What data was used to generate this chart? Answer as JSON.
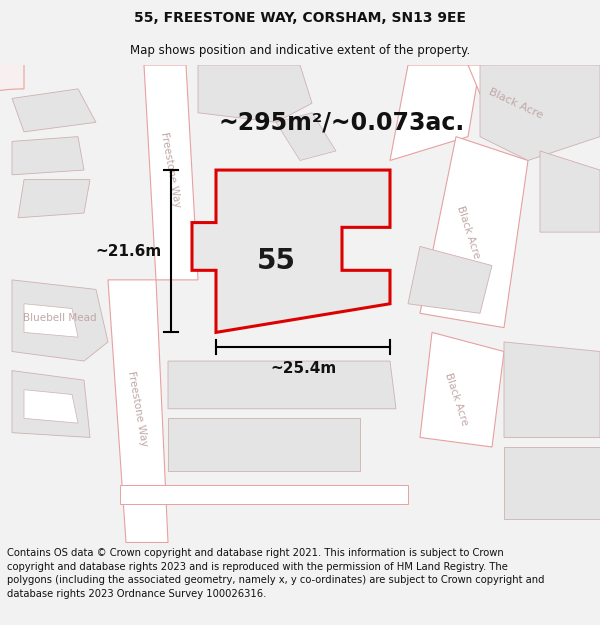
{
  "title": "55, FREESTONE WAY, CORSHAM, SN13 9EE",
  "subtitle": "Map shows position and indicative extent of the property.",
  "area_text": "~295m²/~0.073ac.",
  "label_55": "55",
  "dim_height": "~21.6m",
  "dim_width": "~25.4m",
  "footer": "Contains OS data © Crown copyright and database right 2021. This information is subject to Crown copyright and database rights 2023 and is reproduced with the permission of HM Land Registry. The polygons (including the associated geometry, namely x, y co-ordinates) are subject to Crown copyright and database rights 2023 Ordnance Survey 100026316.",
  "bg_color": "#f2f2f2",
  "map_bg": "#ffffff",
  "property_fill": "#e8e8e8",
  "property_edge": "#dd0000",
  "road_outline": "#e8a0a0",
  "building_fill": "#e4e4e4",
  "building_outline": "#d0b0b0",
  "road_label_color": "#c0a8a8",
  "dim_color": "#111111",
  "area_color": "#111111",
  "title_fontsize": 10,
  "subtitle_fontsize": 8.5,
  "area_fontsize": 17,
  "label_fontsize": 20,
  "footer_fontsize": 7.2
}
